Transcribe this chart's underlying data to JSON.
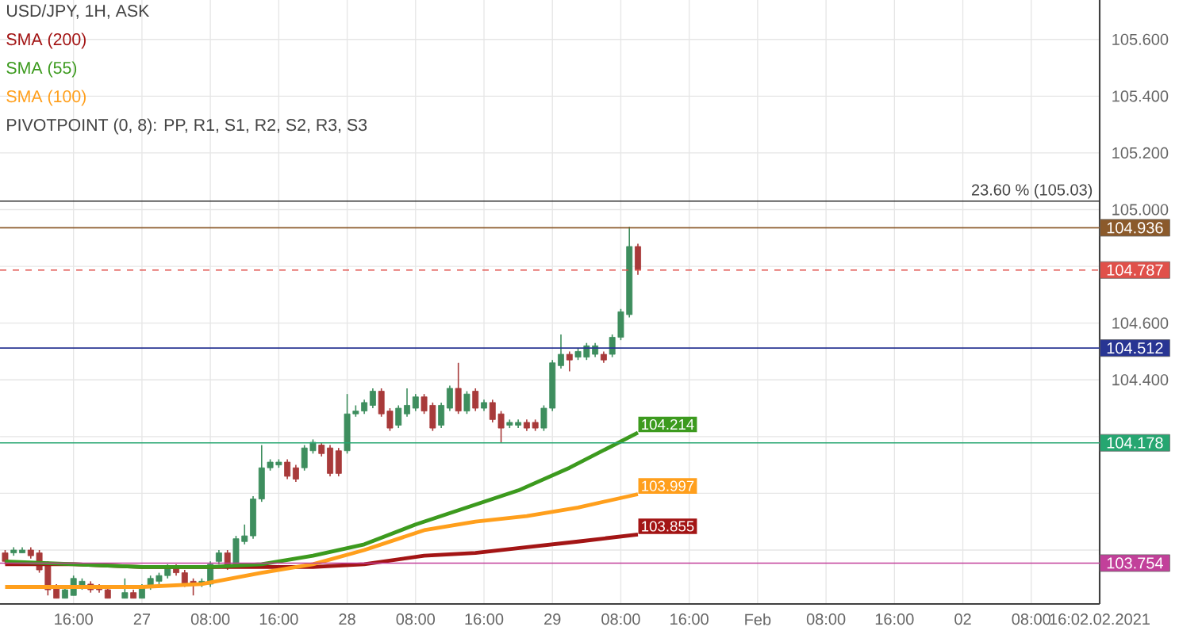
{
  "chart_data": {
    "type": "candlestick",
    "title": "USD/JPY, 1H, ASK",
    "categories": [
      null,
      null,
      null,
      null,
      null,
      null,
      null,
      null,
      "16:00",
      null,
      null,
      null,
      null,
      null,
      null,
      null,
      "27",
      null,
      null,
      null,
      null,
      null,
      null,
      null,
      "08:00",
      null,
      null,
      null,
      null,
      null,
      null,
      null,
      "16:00",
      null,
      null,
      null,
      null,
      null,
      null,
      null,
      "28",
      null,
      null,
      null,
      null,
      null,
      null,
      null,
      "08:00",
      null,
      null,
      null,
      null,
      null,
      null,
      null,
      "16:00",
      null,
      null,
      null,
      null,
      null,
      null,
      null,
      "29",
      null,
      null,
      null,
      null,
      null,
      null,
      null,
      "08:00",
      null,
      null,
      null,
      null,
      null,
      null,
      null,
      "16:00",
      null,
      null,
      null,
      null,
      null,
      null,
      null,
      "Feb",
      null,
      null,
      null,
      null,
      null,
      null,
      null,
      "08:00",
      null,
      null,
      null,
      null,
      null,
      null,
      null,
      "16:00",
      null,
      null,
      null,
      null,
      null,
      null,
      null,
      "02",
      null,
      null,
      null,
      null,
      null,
      null,
      null,
      "08:00",
      null,
      null,
      null,
      null,
      null,
      null,
      null,
      "16:02.02.2021"
    ],
    "ohlc": [
      [
        103.79,
        103.8,
        103.75,
        103.76
      ],
      [
        103.79,
        103.81,
        103.78,
        103.8
      ],
      [
        103.79,
        103.81,
        103.79,
        103.8
      ],
      [
        103.8,
        103.81,
        103.77,
        103.78
      ],
      [
        103.79,
        103.8,
        103.72,
        103.73
      ],
      [
        103.75,
        103.76,
        103.64,
        103.66
      ],
      [
        103.67,
        103.68,
        103.63,
        103.63
      ],
      [
        103.63,
        103.67,
        103.63,
        103.66
      ],
      [
        103.64,
        103.71,
        103.64,
        103.7
      ],
      [
        103.67,
        103.7,
        103.66,
        103.69
      ],
      [
        103.68,
        103.69,
        103.65,
        103.66
      ],
      [
        103.67,
        103.68,
        103.65,
        103.66
      ],
      [
        103.66,
        103.67,
        103.63,
        103.63
      ],
      null,
      [
        103.63,
        103.7,
        103.63,
        103.65
      ],
      [
        103.65,
        103.66,
        103.63,
        103.63
      ],
      [
        103.63,
        103.68,
        103.63,
        103.67
      ],
      [
        103.67,
        103.71,
        103.66,
        103.7
      ],
      [
        103.69,
        103.72,
        103.68,
        103.71
      ],
      [
        103.71,
        103.75,
        103.7,
        103.74
      ],
      [
        103.74,
        103.75,
        103.71,
        103.72
      ],
      [
        103.72,
        103.73,
        103.67,
        103.68
      ],
      [
        103.69,
        103.7,
        103.64,
        103.68
      ],
      [
        103.68,
        103.7,
        103.67,
        103.69
      ],
      [
        103.68,
        103.76,
        103.67,
        103.75
      ],
      [
        103.76,
        103.8,
        103.75,
        103.79
      ],
      [
        103.79,
        103.8,
        103.73,
        103.74
      ],
      [
        103.75,
        103.85,
        103.74,
        103.84
      ],
      [
        103.83,
        103.89,
        103.82,
        103.85
      ],
      [
        103.85,
        103.99,
        103.84,
        103.98
      ],
      [
        103.98,
        104.17,
        103.97,
        104.09
      ],
      [
        104.09,
        104.12,
        104.08,
        104.11
      ],
      [
        104.1,
        104.12,
        104.09,
        104.11
      ],
      [
        104.11,
        104.12,
        104.05,
        104.06
      ],
      [
        104.09,
        104.1,
        104.04,
        104.05
      ],
      [
        104.09,
        104.17,
        104.08,
        104.16
      ],
      [
        104.15,
        104.19,
        104.14,
        104.18
      ],
      [
        104.17,
        104.18,
        104.13,
        104.14
      ],
      [
        104.16,
        104.17,
        104.06,
        104.07
      ],
      [
        104.15,
        104.16,
        104.06,
        104.07
      ],
      [
        104.15,
        104.35,
        104.14,
        104.28
      ],
      [
        104.28,
        104.31,
        104.27,
        104.29
      ],
      [
        104.29,
        104.33,
        104.28,
        104.32
      ],
      [
        104.31,
        104.37,
        104.3,
        104.36
      ],
      [
        104.36,
        104.37,
        104.27,
        104.28
      ],
      [
        104.29,
        104.3,
        104.22,
        104.23
      ],
      [
        104.24,
        104.31,
        104.23,
        104.3
      ],
      [
        104.28,
        104.37,
        104.27,
        104.31
      ],
      [
        104.3,
        104.35,
        104.29,
        104.34
      ],
      [
        104.34,
        104.35,
        104.28,
        104.29
      ],
      [
        104.31,
        104.32,
        104.22,
        104.23
      ],
      [
        104.24,
        104.32,
        104.23,
        104.31
      ],
      [
        104.3,
        104.38,
        104.29,
        104.37
      ],
      [
        104.37,
        104.46,
        104.28,
        104.29
      ],
      [
        104.29,
        104.36,
        104.28,
        104.35
      ],
      [
        104.36,
        104.37,
        104.29,
        104.3
      ],
      [
        104.3,
        104.33,
        104.29,
        104.32
      ],
      [
        104.32,
        104.33,
        104.25,
        104.26
      ],
      [
        104.28,
        104.29,
        104.18,
        104.23
      ],
      [
        104.24,
        104.26,
        104.23,
        104.25
      ],
      [
        104.24,
        104.26,
        104.23,
        104.25
      ],
      [
        104.25,
        104.26,
        104.22,
        104.23
      ],
      [
        104.25,
        104.26,
        104.22,
        104.23
      ],
      [
        104.23,
        104.31,
        104.22,
        104.3
      ],
      [
        104.3,
        104.47,
        104.29,
        104.46
      ],
      [
        104.45,
        104.56,
        104.44,
        104.49
      ],
      [
        104.49,
        104.5,
        104.43,
        104.47
      ],
      [
        104.48,
        104.51,
        104.47,
        104.5
      ],
      [
        104.48,
        104.53,
        104.47,
        104.52
      ],
      [
        104.49,
        104.53,
        104.48,
        104.52
      ],
      [
        104.49,
        104.5,
        104.46,
        104.47
      ],
      [
        104.49,
        104.56,
        104.48,
        104.55
      ],
      [
        104.55,
        104.65,
        104.54,
        104.64
      ],
      [
        104.63,
        104.94,
        104.62,
        104.87
      ],
      [
        104.87,
        104.88,
        104.77,
        104.79
      ],
      null,
      null,
      null,
      null,
      null,
      null,
      null,
      null,
      null,
      null,
      null,
      null,
      null,
      null,
      null,
      null,
      null,
      null,
      null,
      null,
      null,
      null,
      null,
      null,
      null,
      null,
      null,
      null,
      null,
      null,
      null,
      null,
      null,
      null,
      null,
      null,
      null,
      null,
      null,
      null,
      null,
      null,
      null,
      null,
      null,
      null,
      null,
      null,
      null,
      null,
      null,
      null,
      null,
      null
    ],
    "series": [
      {
        "name": "SMA (200)",
        "type": "line",
        "color": "#a31515",
        "values": [
          103.75,
          null,
          null,
          null,
          null,
          null,
          null,
          null,
          103.75,
          null,
          null,
          null,
          null,
          null,
          null,
          null,
          103.74,
          null,
          null,
          null,
          null,
          null,
          null,
          null,
          103.74,
          null,
          null,
          null,
          null,
          null,
          103.74,
          null,
          null,
          null,
          null,
          null,
          103.74,
          null,
          null,
          null,
          null,
          null,
          103.75,
          null,
          null,
          null,
          null,
          null,
          null,
          103.78,
          null,
          null,
          null,
          null,
          null,
          103.79,
          null,
          null,
          null,
          null,
          null,
          103.81,
          null,
          null,
          null,
          null,
          null,
          103.83,
          null,
          null,
          null,
          null,
          null,
          null,
          103.855,
          null,
          null,
          null,
          null,
          null,
          null,
          null,
          null,
          null,
          null,
          null,
          null,
          null,
          null,
          null,
          null,
          null,
          null,
          null,
          null,
          null,
          null,
          null,
          null,
          null,
          null,
          null,
          null,
          null,
          null,
          null,
          null,
          null,
          null,
          null,
          null,
          null,
          null,
          null,
          null,
          null,
          null,
          null,
          null,
          null,
          null,
          null,
          null,
          null,
          null,
          null,
          null,
          null,
          null
        ],
        "value_labels": [
          null,
          null,
          null,
          null,
          null,
          null,
          null,
          null,
          null,
          null,
          null,
          null,
          null,
          null,
          null,
          null,
          null,
          null,
          null,
          null,
          null,
          null,
          null,
          null,
          null,
          null,
          null,
          null,
          null,
          null,
          null,
          null,
          null,
          null,
          null,
          null,
          null,
          null,
          null,
          null,
          null,
          null,
          null,
          null,
          null,
          null,
          null,
          null,
          null,
          null,
          null,
          null,
          null,
          null,
          null,
          null,
          null,
          null,
          null,
          null,
          null,
          null,
          null,
          null,
          null,
          null,
          null,
          null,
          null,
          null,
          null,
          null,
          null,
          null,
          "103.855",
          null,
          null,
          null,
          null,
          null,
          null,
          null,
          null,
          null,
          null,
          null,
          null,
          null,
          null,
          null,
          null,
          null,
          null,
          null,
          null,
          null,
          null,
          null,
          null,
          null,
          null,
          null,
          null,
          null,
          null,
          null,
          null,
          null,
          null,
          null,
          null,
          null,
          null,
          null,
          null,
          null,
          null,
          null,
          null,
          null,
          null,
          null,
          null,
          null,
          null,
          null,
          null,
          null,
          null
        ]
      },
      {
        "name": "SMA (55)",
        "type": "line",
        "color": "#3c9a1e",
        "values": [
          103.76,
          null,
          null,
          null,
          null,
          null,
          null,
          null,
          103.75,
          null,
          null,
          null,
          null,
          null,
          null,
          null,
          103.74,
          null,
          null,
          null,
          null,
          null,
          null,
          null,
          103.74,
          null,
          null,
          null,
          null,
          null,
          103.75,
          null,
          null,
          null,
          null,
          null,
          103.78,
          null,
          null,
          null,
          null,
          null,
          103.82,
          null,
          null,
          null,
          null,
          null,
          103.89,
          null,
          null,
          null,
          null,
          null,
          103.95,
          null,
          null,
          null,
          null,
          null,
          104.01,
          null,
          null,
          null,
          null,
          null,
          104.09,
          null,
          null,
          null,
          null,
          null,
          null,
          null,
          104.214,
          null,
          null,
          null,
          null,
          null,
          null,
          null,
          null,
          null,
          null,
          null,
          null,
          null,
          null,
          null,
          null,
          null,
          null,
          null,
          null,
          null,
          null,
          null,
          null,
          null,
          null,
          null,
          null,
          null,
          null,
          null,
          null,
          null,
          null,
          null,
          null,
          null,
          null,
          null,
          null,
          null,
          null,
          null,
          null,
          null,
          null,
          null,
          null,
          null,
          null,
          null,
          null,
          null,
          null
        ],
        "value_labels": [
          null,
          null,
          null,
          null,
          null,
          null,
          null,
          null,
          null,
          null,
          null,
          null,
          null,
          null,
          null,
          null,
          null,
          null,
          null,
          null,
          null,
          null,
          null,
          null,
          null,
          null,
          null,
          null,
          null,
          null,
          null,
          null,
          null,
          null,
          null,
          null,
          null,
          null,
          null,
          null,
          null,
          null,
          null,
          null,
          null,
          null,
          null,
          null,
          null,
          null,
          null,
          null,
          null,
          null,
          null,
          null,
          null,
          null,
          null,
          null,
          null,
          null,
          null,
          null,
          null,
          null,
          null,
          null,
          null,
          null,
          null,
          null,
          null,
          null,
          "104.214",
          null,
          null,
          null,
          null,
          null,
          null,
          null,
          null,
          null,
          null,
          null,
          null,
          null,
          null,
          null,
          null,
          null,
          null,
          null,
          null,
          null,
          null,
          null,
          null,
          null,
          null,
          null,
          null,
          null,
          null,
          null,
          null,
          null,
          null,
          null,
          null,
          null,
          null,
          null,
          null,
          null,
          null,
          null,
          null,
          null,
          null,
          null,
          null,
          null,
          null,
          null,
          null,
          null,
          null
        ]
      },
      {
        "name": "SMA (100)",
        "type": "line",
        "color": "#ff9f1c",
        "values": [
          103.67,
          null,
          null,
          null,
          null,
          null,
          null,
          null,
          103.67,
          null,
          null,
          null,
          null,
          null,
          null,
          null,
          103.67,
          null,
          null,
          null,
          null,
          null,
          null,
          103.68,
          null,
          null,
          null,
          null,
          null,
          null,
          103.72,
          null,
          null,
          null,
          null,
          null,
          103.75,
          null,
          null,
          null,
          null,
          null,
          103.8,
          null,
          null,
          null,
          null,
          null,
          null,
          103.87,
          null,
          null,
          null,
          null,
          null,
          103.9,
          null,
          null,
          null,
          null,
          null,
          103.92,
          null,
          null,
          null,
          null,
          null,
          103.95,
          null,
          null,
          null,
          null,
          null,
          null,
          103.997,
          null,
          null,
          null,
          null,
          null,
          null,
          null,
          null,
          null,
          null,
          null,
          null,
          null,
          null,
          null,
          null,
          null,
          null,
          null,
          null,
          null,
          null,
          null,
          null,
          null,
          null,
          null,
          null,
          null,
          null,
          null,
          null,
          null,
          null,
          null,
          null,
          null,
          null,
          null,
          null,
          null,
          null,
          null,
          null,
          null,
          null,
          null,
          null,
          null,
          null,
          null,
          null,
          null,
          null
        ],
        "value_labels": [
          null,
          null,
          null,
          null,
          null,
          null,
          null,
          null,
          null,
          null,
          null,
          null,
          null,
          null,
          null,
          null,
          null,
          null,
          null,
          null,
          null,
          null,
          null,
          null,
          null,
          null,
          null,
          null,
          null,
          null,
          null,
          null,
          null,
          null,
          null,
          null,
          null,
          null,
          null,
          null,
          null,
          null,
          null,
          null,
          null,
          null,
          null,
          null,
          null,
          null,
          null,
          null,
          null,
          null,
          null,
          null,
          null,
          null,
          null,
          null,
          null,
          null,
          null,
          null,
          null,
          null,
          null,
          null,
          null,
          null,
          null,
          null,
          null,
          null,
          "103.997",
          null,
          null,
          null,
          null,
          null,
          null,
          null,
          null,
          null,
          null,
          null,
          null,
          null,
          null,
          null,
          null,
          null,
          null,
          null,
          null,
          null,
          null,
          null,
          null,
          null,
          null,
          null,
          null,
          null,
          null,
          null,
          null,
          null,
          null,
          null,
          null,
          null,
          null,
          null,
          null,
          null,
          null,
          null,
          null,
          null,
          null,
          null,
          null,
          null,
          null,
          null,
          null,
          null,
          null
        ]
      }
    ],
    "ylim": [
      103.61,
      105.739
    ],
    "yticks": [
      {
        "value": 103.8,
        "label": null
      },
      {
        "value": 104.0,
        "label": null
      },
      {
        "value": 104.2,
        "label": null
      },
      {
        "value": 104.4,
        "label": "104.400"
      },
      {
        "value": 104.6,
        "label": "104.600"
      },
      {
        "value": 104.8,
        "label": null
      },
      {
        "value": 105.0,
        "label": "105.000"
      },
      {
        "value": 105.2,
        "label": "105.200"
      },
      {
        "value": 105.4,
        "label": "105.400"
      },
      {
        "value": 105.6,
        "label": "105.600"
      }
    ],
    "ref_lines": [
      {
        "axis": "y",
        "value": 105.03,
        "color": "#333333"
      },
      {
        "axis": "y",
        "value": 104.936,
        "label": "104.936",
        "color": "#8b5a2b"
      },
      {
        "axis": "y",
        "value": 104.787,
        "label": "104.787",
        "color": "#e0504a",
        "line_style": "dashed"
      },
      {
        "axis": "y",
        "value": 104.512,
        "label": "104.512",
        "color": "#283593"
      },
      {
        "axis": "y",
        "value": 104.178,
        "label": "104.178",
        "color": "#26a671"
      },
      {
        "axis": "y",
        "value": 103.754,
        "label": "103.754",
        "color": "#c2409a"
      }
    ],
    "annotations": [
      "PIVOTPOINT (0, 8): PP, R1, S1, R2, S2, R3, S3",
      {
        "text": "23.60 % (105.03)",
        "y": 105.03
      }
    ],
    "grid": true,
    "legend": "top left"
  }
}
